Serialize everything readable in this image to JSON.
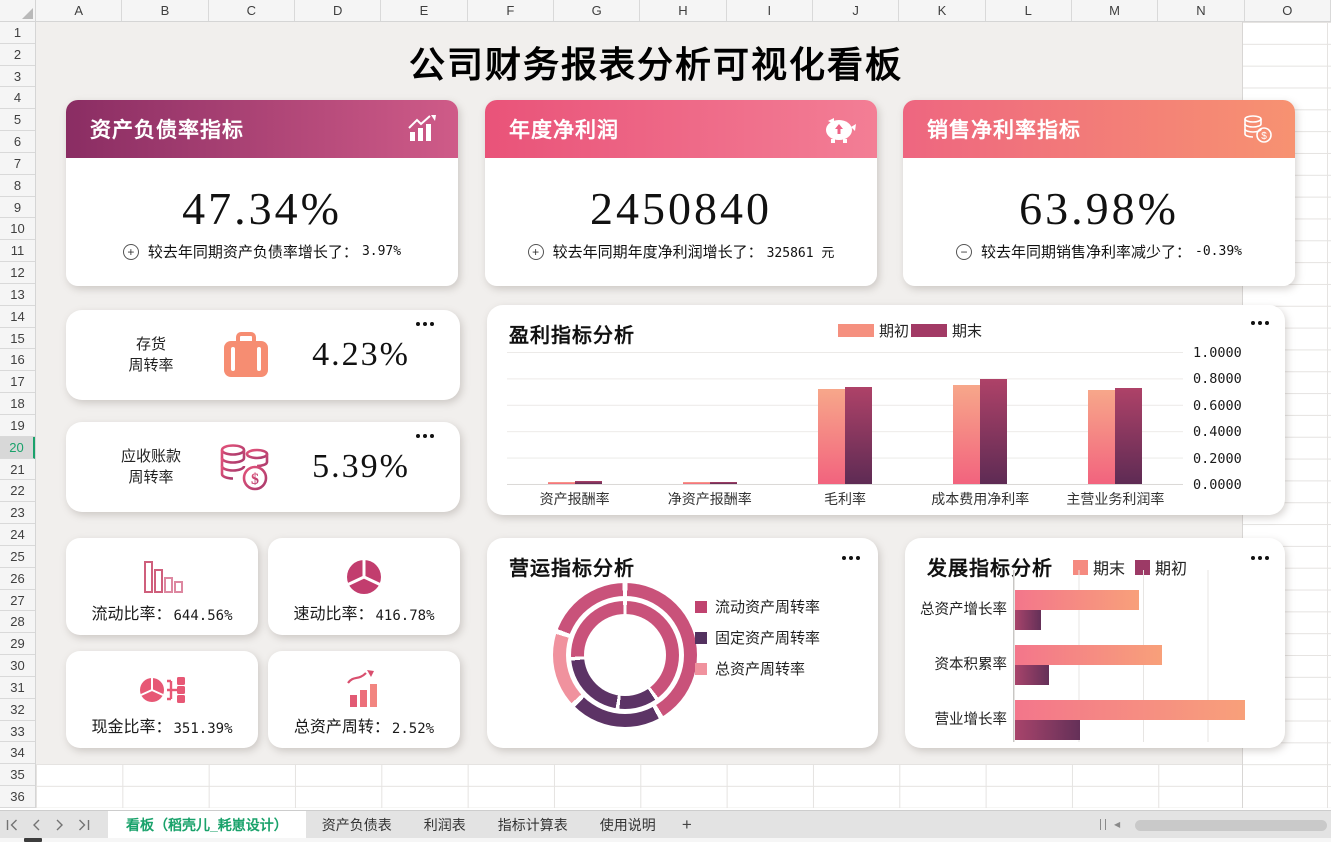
{
  "spreadsheet": {
    "columns": [
      "A",
      "B",
      "C",
      "D",
      "E",
      "F",
      "G",
      "H",
      "I",
      "J",
      "K",
      "L",
      "M",
      "N",
      "O"
    ],
    "rows": [
      "1",
      "2",
      "3",
      "4",
      "5",
      "6",
      "7",
      "8",
      "9",
      "10",
      "11",
      "12",
      "13",
      "14",
      "15",
      "16",
      "17",
      "18",
      "19",
      "20",
      "21",
      "22",
      "23",
      "24",
      "25",
      "26",
      "27",
      "28",
      "29",
      "30",
      "31",
      "32",
      "33",
      "34",
      "35",
      "36"
    ],
    "active_row": "20"
  },
  "dashboard": {
    "title": "公司财务报表分析可视化看板",
    "kpi_cards": [
      {
        "title": "资产负债率指标",
        "icon": "bar-chart-trend-icon",
        "value": "47.34%",
        "sign": "+",
        "note": "较去年同期资产负债率增长了：",
        "note_value": "3.97%",
        "header_from": "#8a2d63",
        "header_to": "#cf5b88"
      },
      {
        "title": "年度净利润",
        "icon": "piggy-bank-icon",
        "value": "2450840",
        "sign": "+",
        "note": "较去年同期年度净利润增长了：",
        "note_value": "325861 元",
        "header_from": "#e95379",
        "header_to": "#f37e95"
      },
      {
        "title": "销售净利率指标",
        "icon": "coins-icon",
        "value": "63.98%",
        "sign": "−",
        "note": "较去年同期销售净利率减少了：",
        "note_value": "-0.39%",
        "header_from": "#ee6680",
        "header_to": "#f79271"
      }
    ],
    "metric_cards": [
      {
        "label_line1": "存货",
        "label_line2": "周转率",
        "icon": "briefcase-icon",
        "value": "4.23%"
      },
      {
        "label_line1": "应收账款",
        "label_line2": "周转率",
        "icon": "coin-stack-icon",
        "value": "5.39%"
      }
    ],
    "ratio_cards": [
      {
        "label": "流动比率：",
        "value": "644.56%",
        "icon": "declining-bars-icon"
      },
      {
        "label": "速动比率：",
        "value": "416.78%",
        "icon": "pie-chart-icon"
      },
      {
        "label": "现金比率：",
        "value": "351.39%",
        "icon": "pie-tree-icon"
      },
      {
        "label": "总资产周转：",
        "value": "2.52%",
        "icon": "rising-bars-icon"
      }
    ]
  },
  "chart_data": [
    {
      "type": "bar",
      "title": "盈利指标分析",
      "categories": [
        "资产报酬率",
        "净资产报酬率",
        "毛利率",
        "成本费用净利率",
        "主营业务利润率"
      ],
      "series": [
        {
          "name": "期初",
          "color": "#f5907f",
          "grad": [
            "#f7a78a",
            "#f2637e"
          ],
          "values": [
            0.015,
            0.008,
            0.72,
            0.75,
            0.715
          ]
        },
        {
          "name": "期末",
          "color": "#a23a65",
          "grad": [
            "#ae4268",
            "#5e2b54"
          ],
          "values": [
            0.02,
            0.01,
            0.735,
            0.795,
            0.73
          ]
        }
      ],
      "ylim": [
        0,
        1
      ],
      "yticks": [
        "1.0000",
        "0.8000",
        "0.6000",
        "0.4000",
        "0.2000",
        "0.0000"
      ],
      "axis_side": "right",
      "legend_position": "top",
      "grid": "horizontal"
    },
    {
      "type": "doughnut",
      "title": "营运指标分析",
      "legend": [
        {
          "label": "流动资产周转率",
          "color": "#c0436f"
        },
        {
          "label": "固定资产周转率",
          "color": "#53315f"
        },
        {
          "label": "总资产周转率",
          "color": "#f0929e"
        }
      ],
      "rings": {
        "outer": [
          {
            "color": "#c9527a",
            "from": 2,
            "to": 148
          },
          {
            "color": "#5c3365",
            "from": 152,
            "to": 224
          },
          {
            "color": "#f0929e",
            "from": 228,
            "to": 287
          },
          {
            "color": "#c9527a",
            "from": 291,
            "to": 358
          }
        ],
        "inner": [
          {
            "color": "#c9527a",
            "from": 2,
            "to": 142
          },
          {
            "color": "#5c3365",
            "from": 146,
            "to": 186
          },
          {
            "color": "#5c3365",
            "from": 190,
            "to": 264
          },
          {
            "color": "#c9527a",
            "from": 268,
            "to": 358
          }
        ]
      }
    },
    {
      "type": "bar-horizontal",
      "title": "发展指标分析",
      "categories": [
        "总资产增长率",
        "资本积累率",
        "营业增长率"
      ],
      "series": [
        {
          "name": "期末",
          "color": "#f58a80",
          "grad": [
            "#f3768b",
            "#f8a07a"
          ],
          "values": [
            0.48,
            0.57,
            0.89
          ]
        },
        {
          "name": "期初",
          "color": "#9c3a66",
          "grad": [
            "#a8446b",
            "#643058"
          ],
          "values": [
            0.1,
            0.13,
            0.25
          ]
        }
      ],
      "xlim": [
        0,
        1
      ],
      "grid": "vertical",
      "legend_position": "top"
    }
  ],
  "tab_bar": {
    "active_tab": "看板（稻壳儿_耗崽设计）",
    "tabs": [
      "资产负债表",
      "利润表",
      "指标计算表",
      "使用说明"
    ],
    "add_label": "+",
    "active_color": "#1aa26b"
  }
}
